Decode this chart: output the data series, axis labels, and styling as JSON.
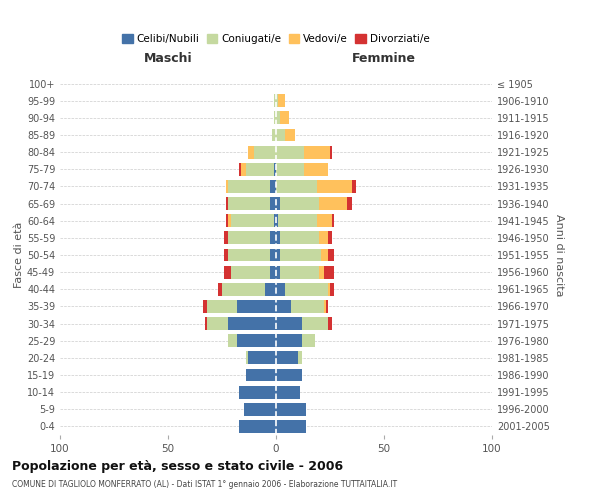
{
  "age_groups": [
    "0-4",
    "5-9",
    "10-14",
    "15-19",
    "20-24",
    "25-29",
    "30-34",
    "35-39",
    "40-44",
    "45-49",
    "50-54",
    "55-59",
    "60-64",
    "65-69",
    "70-74",
    "75-79",
    "80-84",
    "85-89",
    "90-94",
    "95-99",
    "100+"
  ],
  "birth_years": [
    "2001-2005",
    "1996-2000",
    "1991-1995",
    "1986-1990",
    "1981-1985",
    "1976-1980",
    "1971-1975",
    "1966-1970",
    "1961-1965",
    "1956-1960",
    "1951-1955",
    "1946-1950",
    "1941-1945",
    "1936-1940",
    "1931-1935",
    "1926-1930",
    "1921-1925",
    "1916-1920",
    "1911-1915",
    "1906-1910",
    "≤ 1905"
  ],
  "males": {
    "celibi": [
      17,
      15,
      17,
      14,
      13,
      18,
      22,
      18,
      5,
      3,
      3,
      3,
      1,
      3,
      3,
      1,
      0,
      0,
      0,
      0,
      0
    ],
    "coniugati": [
      0,
      0,
      0,
      0,
      1,
      4,
      10,
      14,
      20,
      18,
      19,
      19,
      20,
      19,
      19,
      13,
      10,
      2,
      1,
      1,
      0
    ],
    "vedovi": [
      0,
      0,
      0,
      0,
      0,
      0,
      0,
      0,
      0,
      0,
      0,
      0,
      1,
      0,
      1,
      2,
      3,
      0,
      0,
      0,
      0
    ],
    "divorziati": [
      0,
      0,
      0,
      0,
      0,
      0,
      1,
      2,
      2,
      3,
      2,
      2,
      1,
      1,
      0,
      1,
      0,
      0,
      0,
      0,
      0
    ]
  },
  "females": {
    "nubili": [
      14,
      14,
      11,
      12,
      10,
      12,
      12,
      7,
      4,
      2,
      2,
      2,
      1,
      2,
      0,
      0,
      0,
      0,
      0,
      0,
      0
    ],
    "coniugate": [
      0,
      0,
      0,
      0,
      2,
      6,
      12,
      15,
      20,
      18,
      19,
      18,
      18,
      18,
      19,
      13,
      13,
      4,
      2,
      1,
      0
    ],
    "vedove": [
      0,
      0,
      0,
      0,
      0,
      0,
      0,
      1,
      1,
      2,
      3,
      4,
      7,
      13,
      16,
      11,
      12,
      5,
      4,
      3,
      0
    ],
    "divorziate": [
      0,
      0,
      0,
      0,
      0,
      0,
      2,
      1,
      2,
      5,
      3,
      2,
      1,
      2,
      2,
      0,
      1,
      0,
      0,
      0,
      0
    ]
  },
  "colors": {
    "celibi": "#4472a8",
    "coniugati": "#c5d9a0",
    "vedovi": "#ffc15c",
    "divorziati": "#d43232"
  },
  "title": "Popolazione per età, sesso e stato civile - 2006",
  "subtitle": "COMUNE DI TAGLIOLO MONFERRATO (AL) - Dati ISTAT 1° gennaio 2006 - Elaborazione TUTTAITALIA.IT",
  "xlabel_left": "Maschi",
  "xlabel_right": "Femmine",
  "ylabel_left": "Fasce di età",
  "ylabel_right": "Anni di nascita",
  "xlim": 100,
  "background_color": "#ffffff",
  "grid_color": "#cccccc",
  "legend_labels": [
    "Celibi/Nubili",
    "Coniugati/e",
    "Vedovi/e",
    "Divorziati/e"
  ]
}
